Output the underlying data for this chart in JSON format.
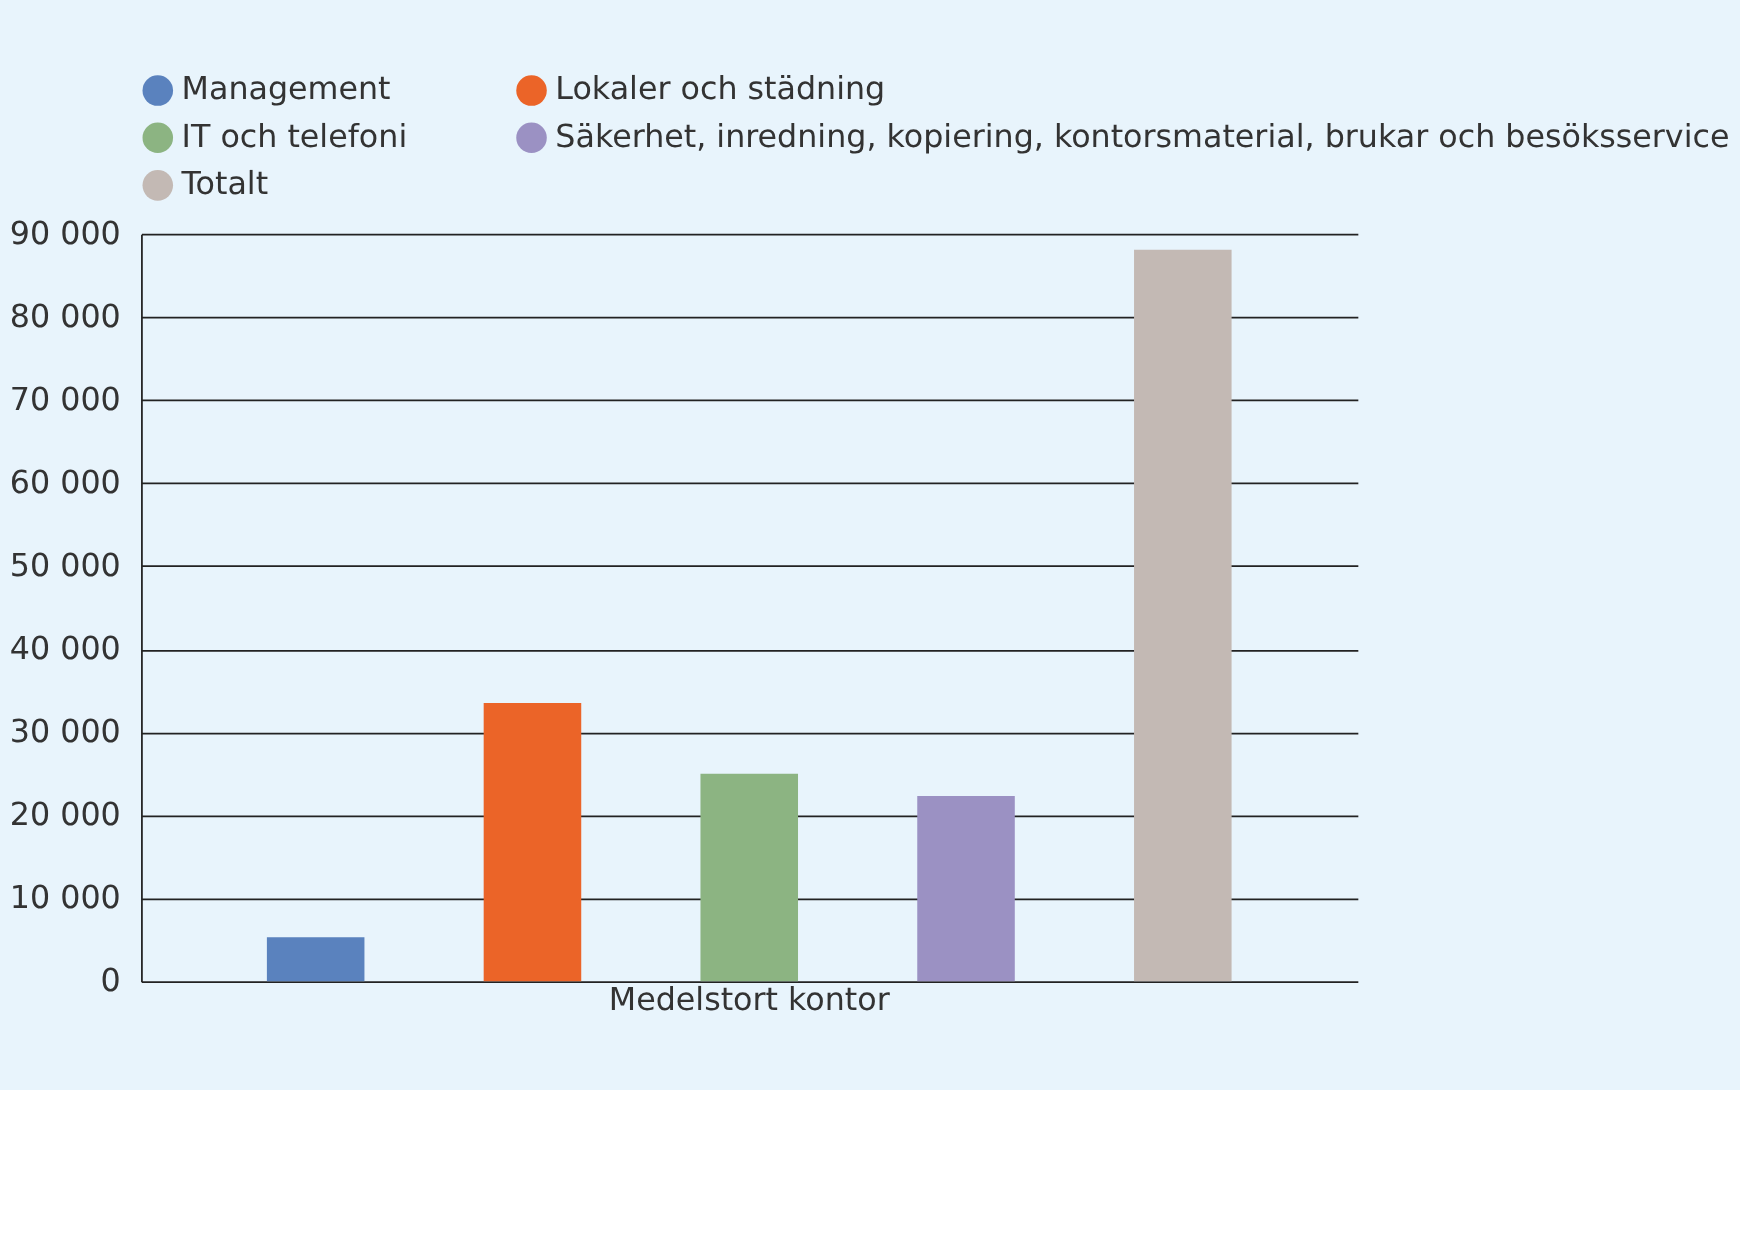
{
  "chart_data": {
    "type": "bar",
    "categories": [
      "Medelstort kontor"
    ],
    "series": [
      {
        "name": "Management",
        "color": "#5a82be",
        "values": [
          5300
        ]
      },
      {
        "name": "Lokaler och städning",
        "color": "#eb6428",
        "values": [
          33500
        ]
      },
      {
        "name": "IT och telefoni",
        "color": "#8cb482",
        "values": [
          25000
        ]
      },
      {
        "name": "Säkerhet, inredning, kopiering, kontorsmaterial, brukar och besöksservice",
        "color": "#9b91c3",
        "values": [
          22300
        ]
      },
      {
        "name": "Totalt",
        "color": "#c3b9b4",
        "values": [
          88100
        ]
      }
    ],
    "ylim": [
      0,
      90000
    ],
    "yticks": [
      {
        "value": 0,
        "label": "0"
      },
      {
        "value": 10000,
        "label": "10 000"
      },
      {
        "value": 20000,
        "label": "20 000"
      },
      {
        "value": 30000,
        "label": "30 000"
      },
      {
        "value": 40000,
        "label": "40 000"
      },
      {
        "value": 50000,
        "label": "50 000"
      },
      {
        "value": 60000,
        "label": "60 000"
      },
      {
        "value": 70000,
        "label": "70 000"
      },
      {
        "value": 80000,
        "label": "80 000"
      },
      {
        "value": 90000,
        "label": "90 000"
      }
    ],
    "grid": "y",
    "legend": "top",
    "marker": "circle"
  }
}
